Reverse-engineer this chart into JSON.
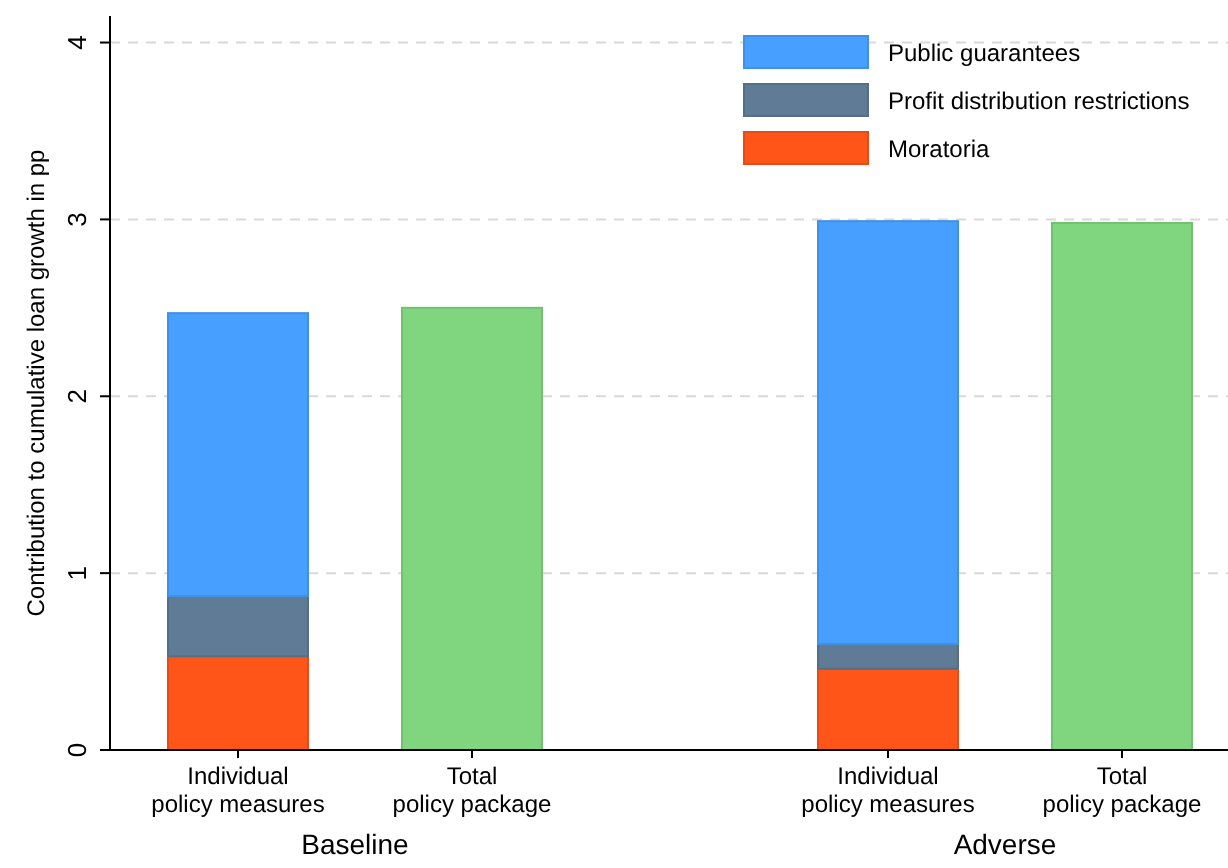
{
  "chart_data": {
    "type": "bar",
    "stacked": true,
    "ylabel": "Contribution to cumulative loan growth in pp",
    "categories": [
      "Individual policy measures",
      "Total policy package",
      "Individual policy measures",
      "Total policy package"
    ],
    "series": [
      {
        "name": "Moratoria",
        "color": "#ff5518",
        "values": [
          0.53,
          null,
          0.46,
          null
        ]
      },
      {
        "name": "Profit distribution restrictions",
        "color": "#5f7b96",
        "values": [
          0.34,
          null,
          0.14,
          null
        ]
      },
      {
        "name": "Public guarantees",
        "color": "#47a0ff",
        "values": [
          1.6,
          null,
          2.39,
          null
        ]
      },
      {
        "color": "#80d67e",
        "values": [
          null,
          2.5,
          null,
          2.98
        ]
      }
    ],
    "annotations": [
      "Baseline",
      "Adverse"
    ],
    "ylim": [
      0,
      4.15
    ],
    "yticks": [
      0,
      1,
      2,
      3,
      4
    ],
    "grid": "y",
    "legend": "top right"
  }
}
